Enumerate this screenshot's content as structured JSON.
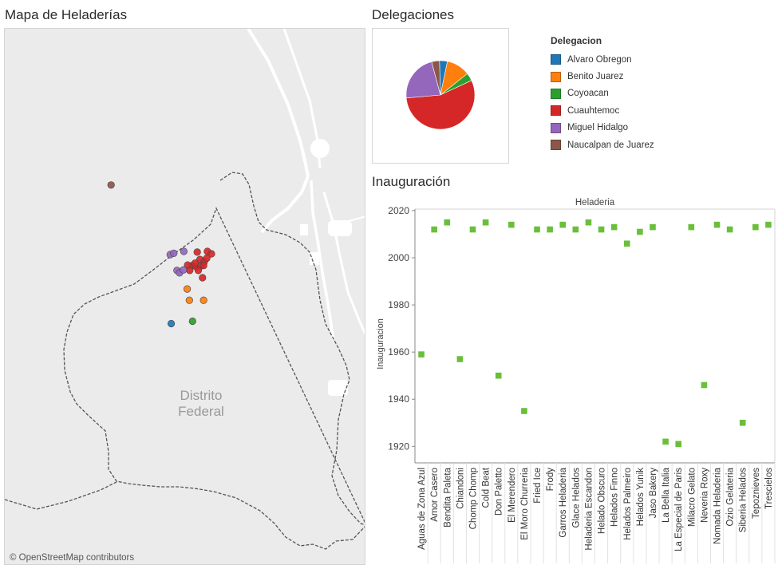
{
  "map": {
    "title": "Mapa de Heladerías",
    "area_label_line1": "Distrito",
    "area_label_line2": "Federal",
    "credit": "© OpenStreetMap contributors",
    "colors": {
      "background": "#ebebeb",
      "road": "#ffffff",
      "boundary": "#555555"
    }
  },
  "pie": {
    "title": "Delegaciones"
  },
  "legend": {
    "title": "Delegacion",
    "items": [
      {
        "label": "Alvaro Obregon",
        "color": "#1f77b4"
      },
      {
        "label": "Benito Juarez",
        "color": "#ff7f0e"
      },
      {
        "label": "Coyoacan",
        "color": "#2ca02c"
      },
      {
        "label": "Cuauhtemoc",
        "color": "#d62728"
      },
      {
        "label": "Miguel Hidalgo",
        "color": "#9467bd"
      },
      {
        "label": "Naucalpan de Juarez",
        "color": "#8c564b"
      }
    ]
  },
  "inauguracion": {
    "title": "Inauguración"
  },
  "chart_data": [
    {
      "type": "pie",
      "title": "Delegaciones",
      "categories": [
        "Alvaro Obregon",
        "Benito Juarez",
        "Coyoacan",
        "Cuauhtemoc",
        "Miguel Hidalgo",
        "Naucalpan de Juarez"
      ],
      "values": [
        1,
        3,
        1,
        15,
        6,
        1
      ],
      "colors": [
        "#1f77b4",
        "#ff7f0e",
        "#2ca02c",
        "#d62728",
        "#9467bd",
        "#8c564b"
      ],
      "legend_title": "Delegacion",
      "legend_position": "right"
    },
    {
      "type": "scatter",
      "title": "Inauguración",
      "column_header": "Heladeria",
      "ylabel": "Inauguracion",
      "ylim": [
        1913,
        2022
      ],
      "yticks": [
        1920,
        1940,
        1960,
        1980,
        2000,
        2020
      ],
      "color": "#6abf3a",
      "categories": [
        "Aguas de Zona Azul",
        "Amor Casero",
        "Bendita Paleta",
        "Chiandoni",
        "Chomp Chomp",
        "Cold Beat",
        "Don Paletto",
        "El Merendero",
        "El Moro Churreria",
        "Fried Ice",
        "Frody",
        "Garros Heladeria",
        "Glace Helados",
        "Heladeria Escandon",
        "Helado Obscuro",
        "Helados Finno",
        "Helados Palmeiro",
        "Helados Yunik",
        "Jaso Bakery",
        "La Bella Italia",
        "La Especial de Paris",
        "Milacro Gelato",
        "Neveria Roxy",
        "Nomada Heladeria",
        "Ozio Gelateria",
        "Siberia Helados",
        "Tepoznieves",
        "Trescielos"
      ],
      "values": [
        1959,
        2012,
        2015,
        1957,
        2012,
        2015,
        1950,
        2014,
        1935,
        2012,
        2012,
        2014,
        2012,
        2015,
        2012,
        2013,
        2006,
        2011,
        2013,
        1922,
        1921,
        2013,
        1946,
        2014,
        2012,
        1930,
        2013,
        2014
      ]
    },
    {
      "type": "scatter",
      "title": "Mapa de Heladerías",
      "x_unit": "longitude",
      "y_unit": "latitude",
      "xlim": [
        -99.25,
        -99.08
      ],
      "ylim": [
        19.3,
        19.52
      ],
      "series": [
        {
          "delegacion": "Alvaro Obregon",
          "color": "#1f77b4",
          "points": [
            [
              -99.1717,
              19.3992
            ]
          ]
        },
        {
          "delegacion": "Benito Juarez",
          "color": "#ff7f0e",
          "points": [
            [
              -99.1642,
              19.4134
            ],
            [
              -99.1632,
              19.4088
            ],
            [
              -99.1565,
              19.4088
            ]
          ]
        },
        {
          "delegacion": "Coyoacan",
          "color": "#2ca02c",
          "points": [
            [
              -99.1617,
              19.4002
            ]
          ]
        },
        {
          "delegacion": "Cuauhtemoc",
          "color": "#d62728",
          "points": [
            [
              -99.1595,
              19.4285
            ],
            [
              -99.1547,
              19.4288
            ],
            [
              -99.1528,
              19.4278
            ],
            [
              -99.1582,
              19.4255
            ],
            [
              -99.1562,
              19.4245
            ],
            [
              -99.1618,
              19.423
            ],
            [
              -99.16,
              19.4225
            ],
            [
              -99.164,
              19.4232
            ],
            [
              -99.1578,
              19.4228
            ],
            [
              -99.1565,
              19.423
            ],
            [
              -99.159,
              19.421
            ],
            [
              -99.163,
              19.421
            ],
            [
              -99.157,
              19.418
            ],
            [
              -99.1605,
              19.424
            ],
            [
              -99.155,
              19.426
            ]
          ]
        },
        {
          "delegacion": "Miguel Hidalgo",
          "color": "#9467bd",
          "points": [
            [
              -99.1722,
              19.4275
            ],
            [
              -99.1705,
              19.428
            ],
            [
              -99.1658,
              19.4288
            ],
            [
              -99.169,
              19.421
            ],
            [
              -99.1678,
              19.42
            ],
            [
              -99.166,
              19.4212
            ]
          ]
        },
        {
          "delegacion": "Naucalpan de Juarez",
          "color": "#8c564b",
          "points": [
            [
              -99.2,
              19.456
            ]
          ]
        }
      ]
    }
  ]
}
